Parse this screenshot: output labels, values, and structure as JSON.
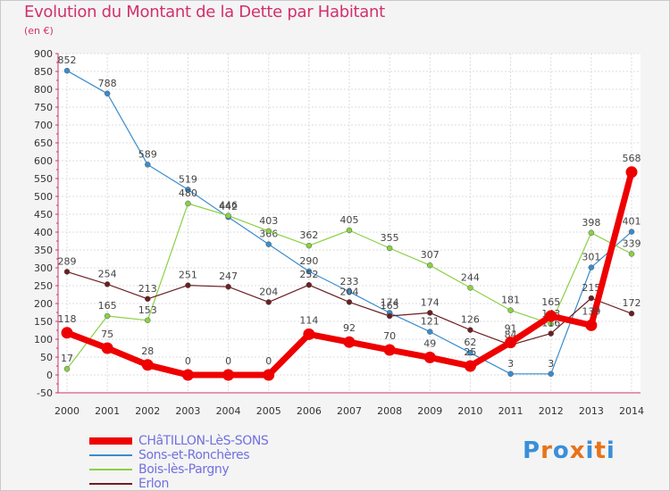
{
  "title": "Evolution du Montant de la Dette par Habitant",
  "subtitle": "(en €)",
  "logo": {
    "letters": [
      "P",
      "r",
      "o",
      "x",
      "i",
      "t",
      "i"
    ],
    "colors": [
      "#3a8fd8",
      "#e8731a",
      "#3a8fd8",
      "#e8731a",
      "#3a8fd8",
      "#e8731a",
      "#3a8fd8"
    ]
  },
  "chart_data": {
    "type": "line",
    "x": [
      "2000",
      "2001",
      "2002",
      "2003",
      "2004",
      "2005",
      "2006",
      "2007",
      "2008",
      "2009",
      "2010",
      "2011",
      "2012",
      "2013",
      "2014"
    ],
    "ylim": [
      -50,
      900
    ],
    "yticks": [
      -50,
      0,
      50,
      100,
      150,
      200,
      250,
      300,
      350,
      400,
      450,
      500,
      550,
      600,
      650,
      700,
      750,
      800,
      850,
      900
    ],
    "grid": true,
    "legend_position": "bottom-left",
    "series": [
      {
        "name": "Sons-et-Ronchères",
        "color": "#3a8ccc",
        "width": 1.2,
        "values": [
          852,
          788,
          589,
          519,
          442,
          366,
          290,
          233,
          174,
          121,
          62,
          3,
          3,
          301,
          401
        ],
        "labels": [
          "852",
          "788",
          "589",
          "519",
          "442",
          "366",
          "290",
          "233",
          "174",
          "121",
          "62",
          "3",
          "3",
          "301",
          "401"
        ]
      },
      {
        "name": "Bois-lès-Pargny",
        "color": "#8ad045",
        "width": 1.2,
        "values": [
          17,
          165,
          153,
          480,
          446,
          403,
          362,
          405,
          355,
          307,
          244,
          181,
          143,
          398,
          339
        ],
        "labels": [
          "17",
          "165",
          "153",
          "480",
          "446",
          "403",
          "362",
          "405",
          "355",
          "307",
          "244",
          "181",
          "143",
          "398",
          "339"
        ]
      },
      {
        "name": "Erlon",
        "color": "#6b1f22",
        "width": 1.2,
        "values": [
          289,
          254,
          213,
          251,
          247,
          204,
          252,
          204,
          165,
          174,
          126,
          84,
          116,
          215,
          172
        ],
        "labels": [
          "289",
          "254",
          "213",
          "251",
          "247",
          "204",
          "252",
          "204",
          "165",
          "174",
          "126",
          "84",
          "116",
          "215",
          "172"
        ]
      },
      {
        "name": "CHâTILLON-LèS-SONS",
        "color": "#ee0000",
        "width": 7,
        "values": [
          118,
          75,
          28,
          0,
          0,
          0,
          114,
          92,
          70,
          49,
          25,
          91,
          165,
          139,
          568
        ],
        "labels": [
          "118",
          "75",
          "28",
          "0",
          "0",
          "0",
          "114",
          "92",
          "70",
          "49",
          "25",
          "91",
          "165",
          "139",
          "568"
        ]
      }
    ],
    "legend": [
      {
        "name": "CHâTILLON-LèS-SONS",
        "color": "#ee0000"
      },
      {
        "name": "Sons-et-Ronchères",
        "color": "#3a8ccc"
      },
      {
        "name": "Bois-lès-Pargny",
        "color": "#8ad045"
      },
      {
        "name": "Erlon",
        "color": "#6b1f22"
      }
    ]
  }
}
